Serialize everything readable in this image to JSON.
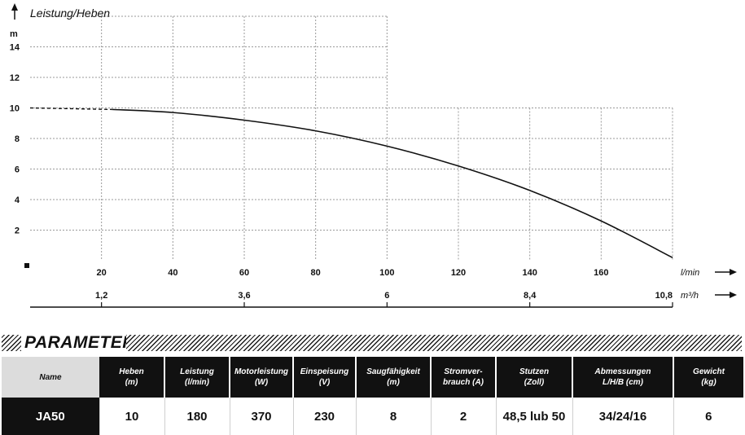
{
  "chart_data": {
    "type": "line",
    "title": "Leistung/Heben",
    "ylabel": "m",
    "xlabel": "l/min",
    "x2label": "m³/h",
    "xlim": [
      0,
      180
    ],
    "ylim": [
      0,
      16
    ],
    "xticks": [
      20,
      40,
      60,
      80,
      100,
      120,
      140,
      160
    ],
    "yticks": [
      2,
      4,
      6,
      8,
      10,
      12,
      14
    ],
    "x2ticks": [
      {
        "value": 20,
        "label": "1,2"
      },
      {
        "value": 60,
        "label": "3,6"
      },
      {
        "value": 100,
        "label": "6"
      },
      {
        "value": 140,
        "label": "8,4"
      },
      {
        "value": 180,
        "label": "10,8"
      }
    ],
    "grid": true,
    "series": [
      {
        "style": "solid",
        "x": [
          23,
          40,
          60,
          80,
          100,
          120,
          140,
          160,
          180
        ],
        "y": [
          9.9,
          9.7,
          9.2,
          8.5,
          7.5,
          6.2,
          4.6,
          2.6,
          0.2
        ]
      },
      {
        "style": "dashed",
        "x": [
          0,
          23
        ],
        "y": [
          10,
          9.9
        ]
      }
    ]
  },
  "parameter": {
    "title": "PARAMETER",
    "headers": [
      "Name",
      "Heben\n(m)",
      "Leistung\n(l/min)",
      "Motorleistung\n(W)",
      "Einspeisung\n(V)",
      "Saugfähigkeit\n(m)",
      "Stromver-\nbrauch (A)",
      "Stutzen\n(Zoll)",
      "Abmessungen\nL/H/B (cm)",
      "Gewicht\n(kg)"
    ],
    "row": [
      "JA50",
      "10",
      "180",
      "370",
      "230",
      "8",
      "2",
      "48,5 lub 50",
      "34/24/16",
      "6"
    ]
  }
}
